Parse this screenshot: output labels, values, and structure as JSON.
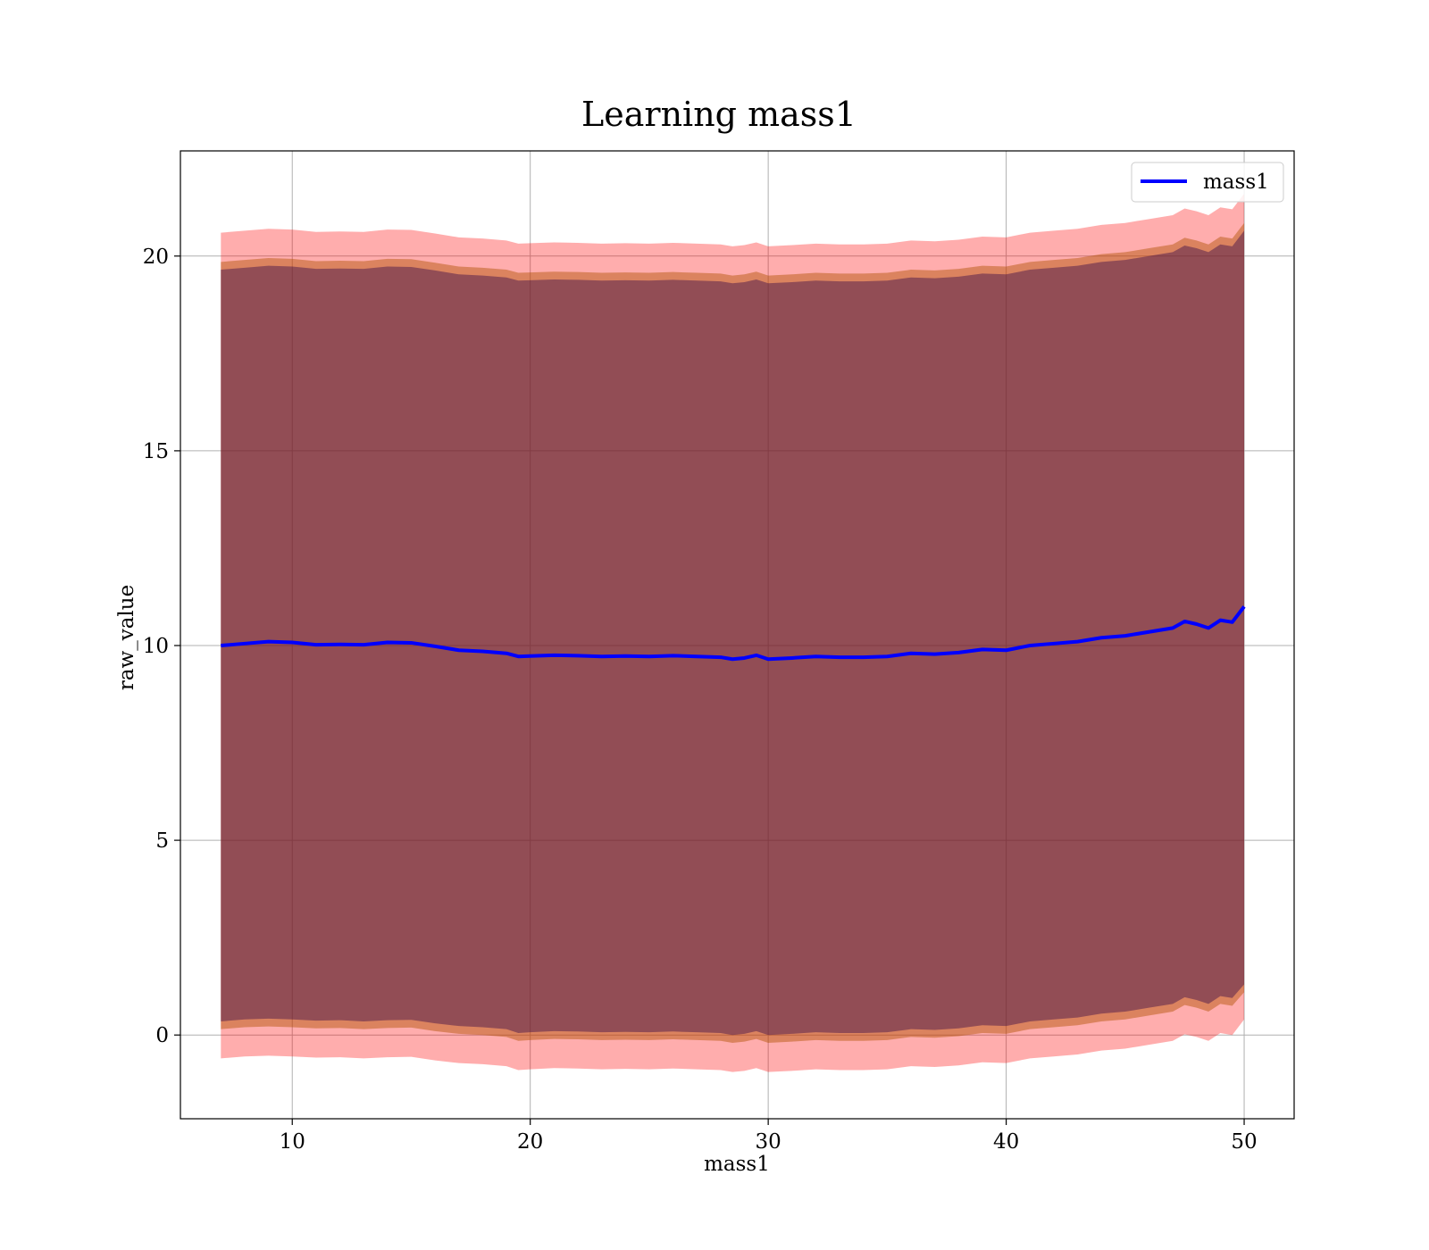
{
  "chart_data": {
    "type": "line",
    "title": "Learning mass1",
    "xlabel": "mass1",
    "ylabel": "raw_value",
    "xlim": [
      5.3,
      52.1
    ],
    "ylim": [
      -2.15,
      22.7
    ],
    "xticks": [
      10,
      20,
      30,
      40,
      50
    ],
    "yticks": [
      0,
      5,
      10,
      15,
      20
    ],
    "grid": true,
    "legend": {
      "position": "top-right",
      "entries": [
        {
          "label": "mass1",
          "color": "#0000ff"
        }
      ]
    },
    "colors": {
      "line": "#0000ff",
      "band_outer": "#ff0000",
      "band_middle": "#b05000",
      "band_inner": "#3a0a4a",
      "grid": "#b0b0b0"
    },
    "x": [
      7,
      8,
      9,
      10,
      11,
      12,
      13,
      14,
      15,
      16,
      17,
      18,
      19,
      19.5,
      20,
      21,
      22,
      23,
      24,
      25,
      26,
      27,
      28,
      28.5,
      29,
      29.5,
      30,
      31,
      32,
      33,
      34,
      35,
      36,
      37,
      38,
      39,
      40,
      41,
      42,
      43,
      44,
      45,
      46,
      47,
      47.5,
      48,
      48.5,
      49,
      49.5,
      50
    ],
    "series": [
      {
        "name": "mass1",
        "values": [
          10.0,
          10.05,
          10.1,
          10.08,
          10.02,
          10.03,
          10.02,
          10.08,
          10.07,
          9.98,
          9.88,
          9.85,
          9.8,
          9.72,
          9.73,
          9.75,
          9.74,
          9.72,
          9.73,
          9.72,
          9.74,
          9.72,
          9.7,
          9.65,
          9.68,
          9.75,
          9.65,
          9.68,
          9.72,
          9.7,
          9.7,
          9.72,
          9.8,
          9.78,
          9.82,
          9.9,
          9.88,
          10.0,
          10.05,
          10.1,
          10.2,
          10.25,
          10.35,
          10.45,
          10.62,
          10.55,
          10.45,
          10.65,
          10.6,
          11.0
        ]
      }
    ],
    "bands": [
      {
        "lower": [
          -0.6,
          -0.55,
          -0.53,
          -0.55,
          -0.58,
          -0.57,
          -0.6,
          -0.57,
          -0.56,
          -0.65,
          -0.72,
          -0.75,
          -0.8,
          -0.9,
          -0.88,
          -0.85,
          -0.86,
          -0.88,
          -0.87,
          -0.88,
          -0.86,
          -0.88,
          -0.9,
          -0.95,
          -0.92,
          -0.85,
          -0.95,
          -0.92,
          -0.88,
          -0.9,
          -0.9,
          -0.88,
          -0.8,
          -0.82,
          -0.78,
          -0.7,
          -0.72,
          -0.6,
          -0.55,
          -0.5,
          -0.4,
          -0.35,
          -0.25,
          -0.15,
          0.02,
          -0.05,
          -0.15,
          0.05,
          0.0,
          0.4
        ],
        "upper": [
          20.6,
          20.65,
          20.7,
          20.68,
          20.62,
          20.63,
          20.62,
          20.68,
          20.67,
          20.58,
          20.48,
          20.45,
          20.4,
          20.32,
          20.33,
          20.35,
          20.34,
          20.32,
          20.33,
          20.32,
          20.34,
          20.32,
          20.3,
          20.25,
          20.28,
          20.35,
          20.25,
          20.28,
          20.32,
          20.3,
          20.3,
          20.32,
          20.4,
          20.38,
          20.42,
          20.5,
          20.48,
          20.6,
          20.65,
          20.7,
          20.8,
          20.85,
          20.95,
          21.05,
          21.22,
          21.15,
          21.05,
          21.25,
          21.2,
          21.6
        ]
      },
      {
        "lower": [
          0.15,
          0.2,
          0.22,
          0.2,
          0.17,
          0.18,
          0.15,
          0.18,
          0.19,
          0.1,
          0.03,
          0.0,
          -0.05,
          -0.15,
          -0.13,
          -0.1,
          -0.11,
          -0.13,
          -0.12,
          -0.13,
          -0.11,
          -0.13,
          -0.15,
          -0.2,
          -0.17,
          -0.1,
          -0.2,
          -0.17,
          -0.13,
          -0.15,
          -0.15,
          -0.13,
          -0.05,
          -0.07,
          -0.03,
          0.05,
          0.03,
          0.15,
          0.2,
          0.25,
          0.35,
          0.4,
          0.5,
          0.6,
          0.77,
          0.7,
          0.6,
          0.8,
          0.75,
          1.1
        ],
        "upper": [
          19.85,
          19.9,
          19.95,
          19.93,
          19.87,
          19.88,
          19.87,
          19.93,
          19.92,
          19.83,
          19.73,
          19.7,
          19.65,
          19.57,
          19.58,
          19.6,
          19.59,
          19.57,
          19.58,
          19.57,
          19.59,
          19.57,
          19.55,
          19.5,
          19.53,
          19.6,
          19.5,
          19.53,
          19.57,
          19.55,
          19.55,
          19.57,
          19.65,
          19.63,
          19.67,
          19.75,
          19.73,
          19.85,
          19.9,
          19.95,
          20.05,
          20.1,
          20.2,
          20.3,
          20.47,
          20.4,
          20.3,
          20.5,
          20.45,
          20.85
        ]
      },
      {
        "lower": [
          0.35,
          0.4,
          0.42,
          0.4,
          0.37,
          0.38,
          0.35,
          0.38,
          0.39,
          0.3,
          0.23,
          0.2,
          0.15,
          0.05,
          0.07,
          0.1,
          0.09,
          0.07,
          0.08,
          0.07,
          0.09,
          0.07,
          0.05,
          0.0,
          0.03,
          0.1,
          0.0,
          0.03,
          0.07,
          0.05,
          0.05,
          0.07,
          0.15,
          0.13,
          0.17,
          0.25,
          0.23,
          0.35,
          0.4,
          0.45,
          0.55,
          0.6,
          0.7,
          0.8,
          0.97,
          0.9,
          0.8,
          1.0,
          0.95,
          1.3
        ],
        "upper": [
          19.65,
          19.7,
          19.75,
          19.73,
          19.67,
          19.68,
          19.67,
          19.73,
          19.72,
          19.63,
          19.53,
          19.5,
          19.45,
          19.37,
          19.38,
          19.4,
          19.39,
          19.37,
          19.38,
          19.37,
          19.39,
          19.37,
          19.35,
          19.3,
          19.33,
          19.4,
          19.3,
          19.33,
          19.37,
          19.35,
          19.35,
          19.37,
          19.45,
          19.43,
          19.47,
          19.55,
          19.53,
          19.65,
          19.7,
          19.75,
          19.85,
          19.9,
          20.0,
          20.1,
          20.27,
          20.2,
          20.1,
          20.3,
          20.25,
          20.65
        ]
      }
    ]
  }
}
